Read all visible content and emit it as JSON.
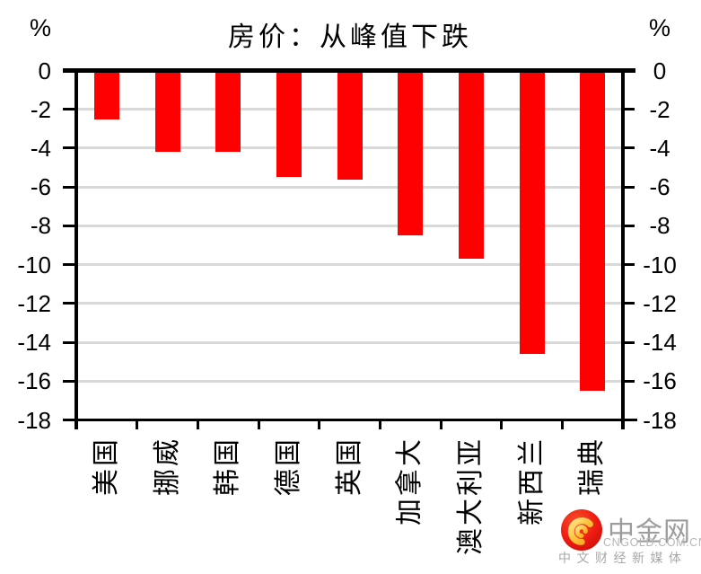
{
  "chart": {
    "title": "房价：从峰值下跌",
    "y_unit_left": "%",
    "y_unit_right": "%"
  },
  "chart_data": {
    "type": "bar",
    "title": "房价：从峰值下跌",
    "categories": [
      "美国",
      "挪威",
      "韩国",
      "德国",
      "英国",
      "加拿大",
      "澳大利亚",
      "新西兰",
      "瑞典"
    ],
    "values": [
      -2.5,
      -4.2,
      -4.2,
      -5.5,
      -5.6,
      -8.5,
      -9.7,
      -14.6,
      -16.5
    ],
    "xlabel": "",
    "ylabel": "%",
    "ylim": [
      -18,
      0
    ],
    "yticks": [
      0,
      -2,
      -4,
      -6,
      -8,
      -10,
      -12,
      -14,
      -16,
      -18
    ],
    "grid": true,
    "legend_position": "none",
    "bar_color": "#ff0000",
    "gridline_color": "#d9d9d9",
    "axis_color": "#000000"
  },
  "watermark": {
    "brand": "中金网",
    "domain": "CNGOLD.COM.CN",
    "tagline": "中文财经新媒体",
    "icon": "cngold-swirl-icon",
    "colors": {
      "circle_red": "#e8150d",
      "circle_orange": "#f8502a",
      "swirl_gold": "#fcc23c",
      "brand_gray": "#9c9c9c"
    }
  }
}
